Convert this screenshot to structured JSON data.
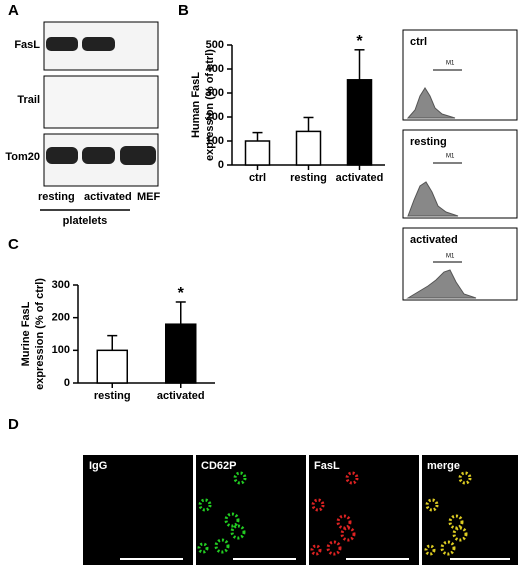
{
  "panels": {
    "a": {
      "letter": "A",
      "rows": [
        "FasL",
        "Trail",
        "Tom20"
      ],
      "lanes": [
        "resting",
        "activated",
        "MEF"
      ],
      "group": "platelets"
    },
    "b_flow": {
      "labels": [
        "ctrl",
        "resting",
        "activated"
      ],
      "gate": "M1"
    },
    "d": {
      "letter": "D",
      "images": [
        "IgG",
        "CD62P",
        "FasL",
        "merge"
      ]
    }
  },
  "chart_data": [
    {
      "type": "bar",
      "letter": "B",
      "ylabel": [
        "Human FasL",
        "expression (% of ctrl)"
      ],
      "categories": [
        "ctrl",
        "resting",
        "activated"
      ],
      "values": [
        100,
        140,
        355
      ],
      "errors": [
        35,
        58,
        125
      ],
      "colors": [
        "#ffffff",
        "#ffffff",
        "#000000"
      ],
      "annotation": "*",
      "ylim": [
        0,
        500
      ],
      "yticks": [
        0,
        100,
        200,
        300,
        400,
        500
      ]
    },
    {
      "type": "bar",
      "letter": "C",
      "ylabel": [
        "Murine FasL",
        "expression (% of ctrl)"
      ],
      "categories": [
        "resting",
        "activated"
      ],
      "values": [
        100,
        180
      ],
      "errors": [
        45,
        68
      ],
      "colors": [
        "#ffffff",
        "#000000"
      ],
      "annotation": "*",
      "ylim": [
        0,
        300
      ],
      "yticks": [
        0,
        100,
        200,
        300
      ]
    }
  ]
}
